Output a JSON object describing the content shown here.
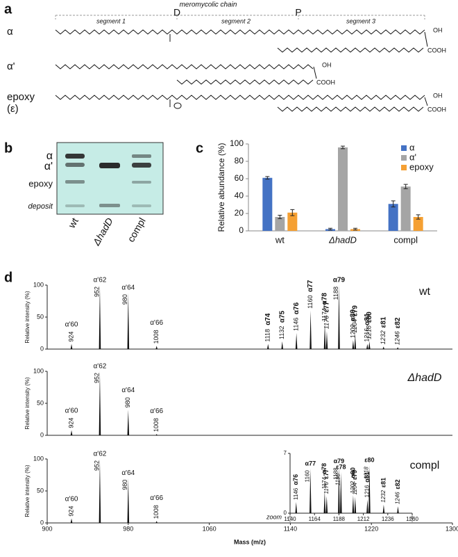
{
  "letters": [
    "a",
    "b",
    "c",
    "d"
  ],
  "panel_a": {
    "title": "meromycolic chain",
    "segments": [
      "segment 1",
      "segment 2",
      "segment 3"
    ],
    "positions": [
      "D",
      "P"
    ],
    "molecules": [
      "α",
      "α'",
      "epoxy"
    ],
    "epoxy_sub": "(ε)",
    "oh": "OH",
    "cooh": "COOH"
  },
  "panel_b": {
    "bands": [
      "α",
      "α'",
      "epoxy",
      "deposit"
    ],
    "lanes": [
      "wt",
      "ΔhadD",
      "compl"
    ]
  },
  "zoom": "zoom",
  "peak_colors": {
    "a'": "#8c8c8c",
    "a": "#3a7fd0",
    "e": "#f07a24"
  },
  "chart_data": [
    {
      "type": "bar",
      "ylabel": "Relative abundance (%)",
      "categories": [
        "wt",
        "ΔhadD",
        "compl"
      ],
      "series": [
        {
          "name": "α",
          "color": "#4472c4",
          "values": [
            61,
            2,
            31
          ],
          "errors": [
            1.5,
            1,
            3.5
          ]
        },
        {
          "name": "α'",
          "color": "#a5a5a5",
          "values": [
            16,
            96,
            51
          ],
          "errors": [
            2,
            1.5,
            2.5
          ]
        },
        {
          "name": "epoxy",
          "color": "#f5a033",
          "values": [
            21,
            2,
            16
          ],
          "errors": [
            3.5,
            1,
            2.5
          ]
        }
      ],
      "ylim": [
        0,
        100
      ],
      "yticks": [
        0,
        20,
        40,
        60,
        80,
        100
      ],
      "legend": "top-right"
    },
    {
      "type": "spectrum",
      "sample": "wt",
      "ylabel": "Relative intensity (%)",
      "xlim": [
        900,
        1300
      ],
      "ylim": [
        0,
        100
      ],
      "yticks": [
        0,
        50,
        100
      ],
      "peaks": [
        {
          "mass": 924,
          "intensity": 8,
          "kind": "a'",
          "species": "α'60"
        },
        {
          "mass": 952,
          "intensity": 100,
          "kind": "a'",
          "species": "α'62"
        },
        {
          "mass": 980,
          "intensity": 88,
          "kind": "a'",
          "species": "α'64"
        },
        {
          "mass": 1008,
          "intensity": 5,
          "kind": "a'",
          "species": "α'66"
        },
        {
          "mass": 1118,
          "intensity": 8,
          "kind": "a",
          "species": "α74"
        },
        {
          "mass": 1132,
          "intensity": 12,
          "kind": "a",
          "species": "α75"
        },
        {
          "mass": 1146,
          "intensity": 25,
          "kind": "a",
          "species": "α76"
        },
        {
          "mass": 1160,
          "intensity": 60,
          "kind": "a",
          "species": "α77"
        },
        {
          "mass": 1174,
          "intensity": 40,
          "kind": "a",
          "species": "α78"
        },
        {
          "mass": 1176,
          "intensity": 28,
          "kind": "e",
          "species": "ε77"
        },
        {
          "mass": 1188,
          "intensity": 100,
          "kind": "a",
          "species": "α79"
        },
        {
          "mass": 1202,
          "intensity": 14,
          "kind": "a",
          "species": "α80"
        },
        {
          "mass": 1204,
          "intensity": 22,
          "kind": "e",
          "species": "ε79"
        },
        {
          "mass": 1216,
          "intensity": 8,
          "kind": "a",
          "species": "α81"
        },
        {
          "mass": 1218,
          "intensity": 12,
          "kind": "e",
          "species": "ε80"
        },
        {
          "mass": 1232,
          "intensity": 4,
          "kind": "e",
          "species": "ε81"
        },
        {
          "mass": 1246,
          "intensity": 3,
          "kind": "e",
          "species": "ε82"
        }
      ]
    },
    {
      "type": "spectrum",
      "sample": "ΔhadD",
      "ylabel": "Relative intensity (%)",
      "xlim": [
        900,
        1300
      ],
      "ylim": [
        0,
        100
      ],
      "yticks": [
        0,
        50,
        100
      ],
      "peaks": [
        {
          "mass": 924,
          "intensity": 8,
          "kind": "a'",
          "species": "α'60"
        },
        {
          "mass": 952,
          "intensity": 100,
          "kind": "a'",
          "species": "α'62"
        },
        {
          "mass": 980,
          "intensity": 40,
          "kind": "a'",
          "species": "α'64"
        },
        {
          "mass": 1008,
          "intensity": 2,
          "kind": "a'",
          "species": "α'66"
        }
      ]
    },
    {
      "type": "spectrum",
      "sample": "compl",
      "ylabel": "Relative intensity (%)",
      "xlabel": "Mass (m/z)",
      "xlim": [
        900,
        1300
      ],
      "xticks": [
        900,
        980,
        1060,
        1140,
        1220,
        1300
      ],
      "ylim": [
        0,
        100
      ],
      "yticks": [
        0,
        50,
        100
      ],
      "peaks": [
        {
          "mass": 924,
          "intensity": 7,
          "kind": "a'",
          "species": "α'60"
        },
        {
          "mass": 952,
          "intensity": 100,
          "kind": "a'",
          "species": "α'62"
        },
        {
          "mass": 980,
          "intensity": 70,
          "kind": "a'",
          "species": "α'64"
        },
        {
          "mass": 1008,
          "intensity": 3,
          "kind": "a'",
          "species": "α'66"
        }
      ]
    },
    {
      "type": "spectrum",
      "xlim": [
        1140,
        1260
      ],
      "xticks": [
        1140,
        1164,
        1188,
        1212,
        1236,
        1260
      ],
      "ylim": [
        0,
        7
      ],
      "yticks": [
        0,
        7
      ],
      "peaks": [
        {
          "mass": 1146,
          "intensity": 1.3,
          "kind": "a",
          "species": "α76"
        },
        {
          "mass": 1160,
          "intensity": 5.2,
          "kind": "a",
          "species": "α77"
        },
        {
          "mass": 1174,
          "intensity": 2.6,
          "kind": "a",
          "species": "α78"
        },
        {
          "mass": 1176,
          "intensity": 2.0,
          "kind": "e",
          "species": "ε77"
        },
        {
          "mass": 1188,
          "intensity": 5.5,
          "kind": "a",
          "species": "α79"
        },
        {
          "mass": 1190,
          "intensity": 4.8,
          "kind": "e",
          "species": "ε78"
        },
        {
          "mass": 1202,
          "intensity": 2.1,
          "kind": "a",
          "species": "α80"
        },
        {
          "mass": 1204,
          "intensity": 1.9,
          "kind": "e",
          "species": "ε79"
        },
        {
          "mass": 1216,
          "intensity": 1.6,
          "kind": "a",
          "species": "α81"
        },
        {
          "mass": 1218,
          "intensity": 5.6,
          "kind": "e",
          "species": "ε80"
        },
        {
          "mass": 1232,
          "intensity": 1.0,
          "kind": "e",
          "species": "ε81"
        },
        {
          "mass": 1246,
          "intensity": 0.8,
          "kind": "e",
          "species": "ε82"
        }
      ]
    }
  ]
}
